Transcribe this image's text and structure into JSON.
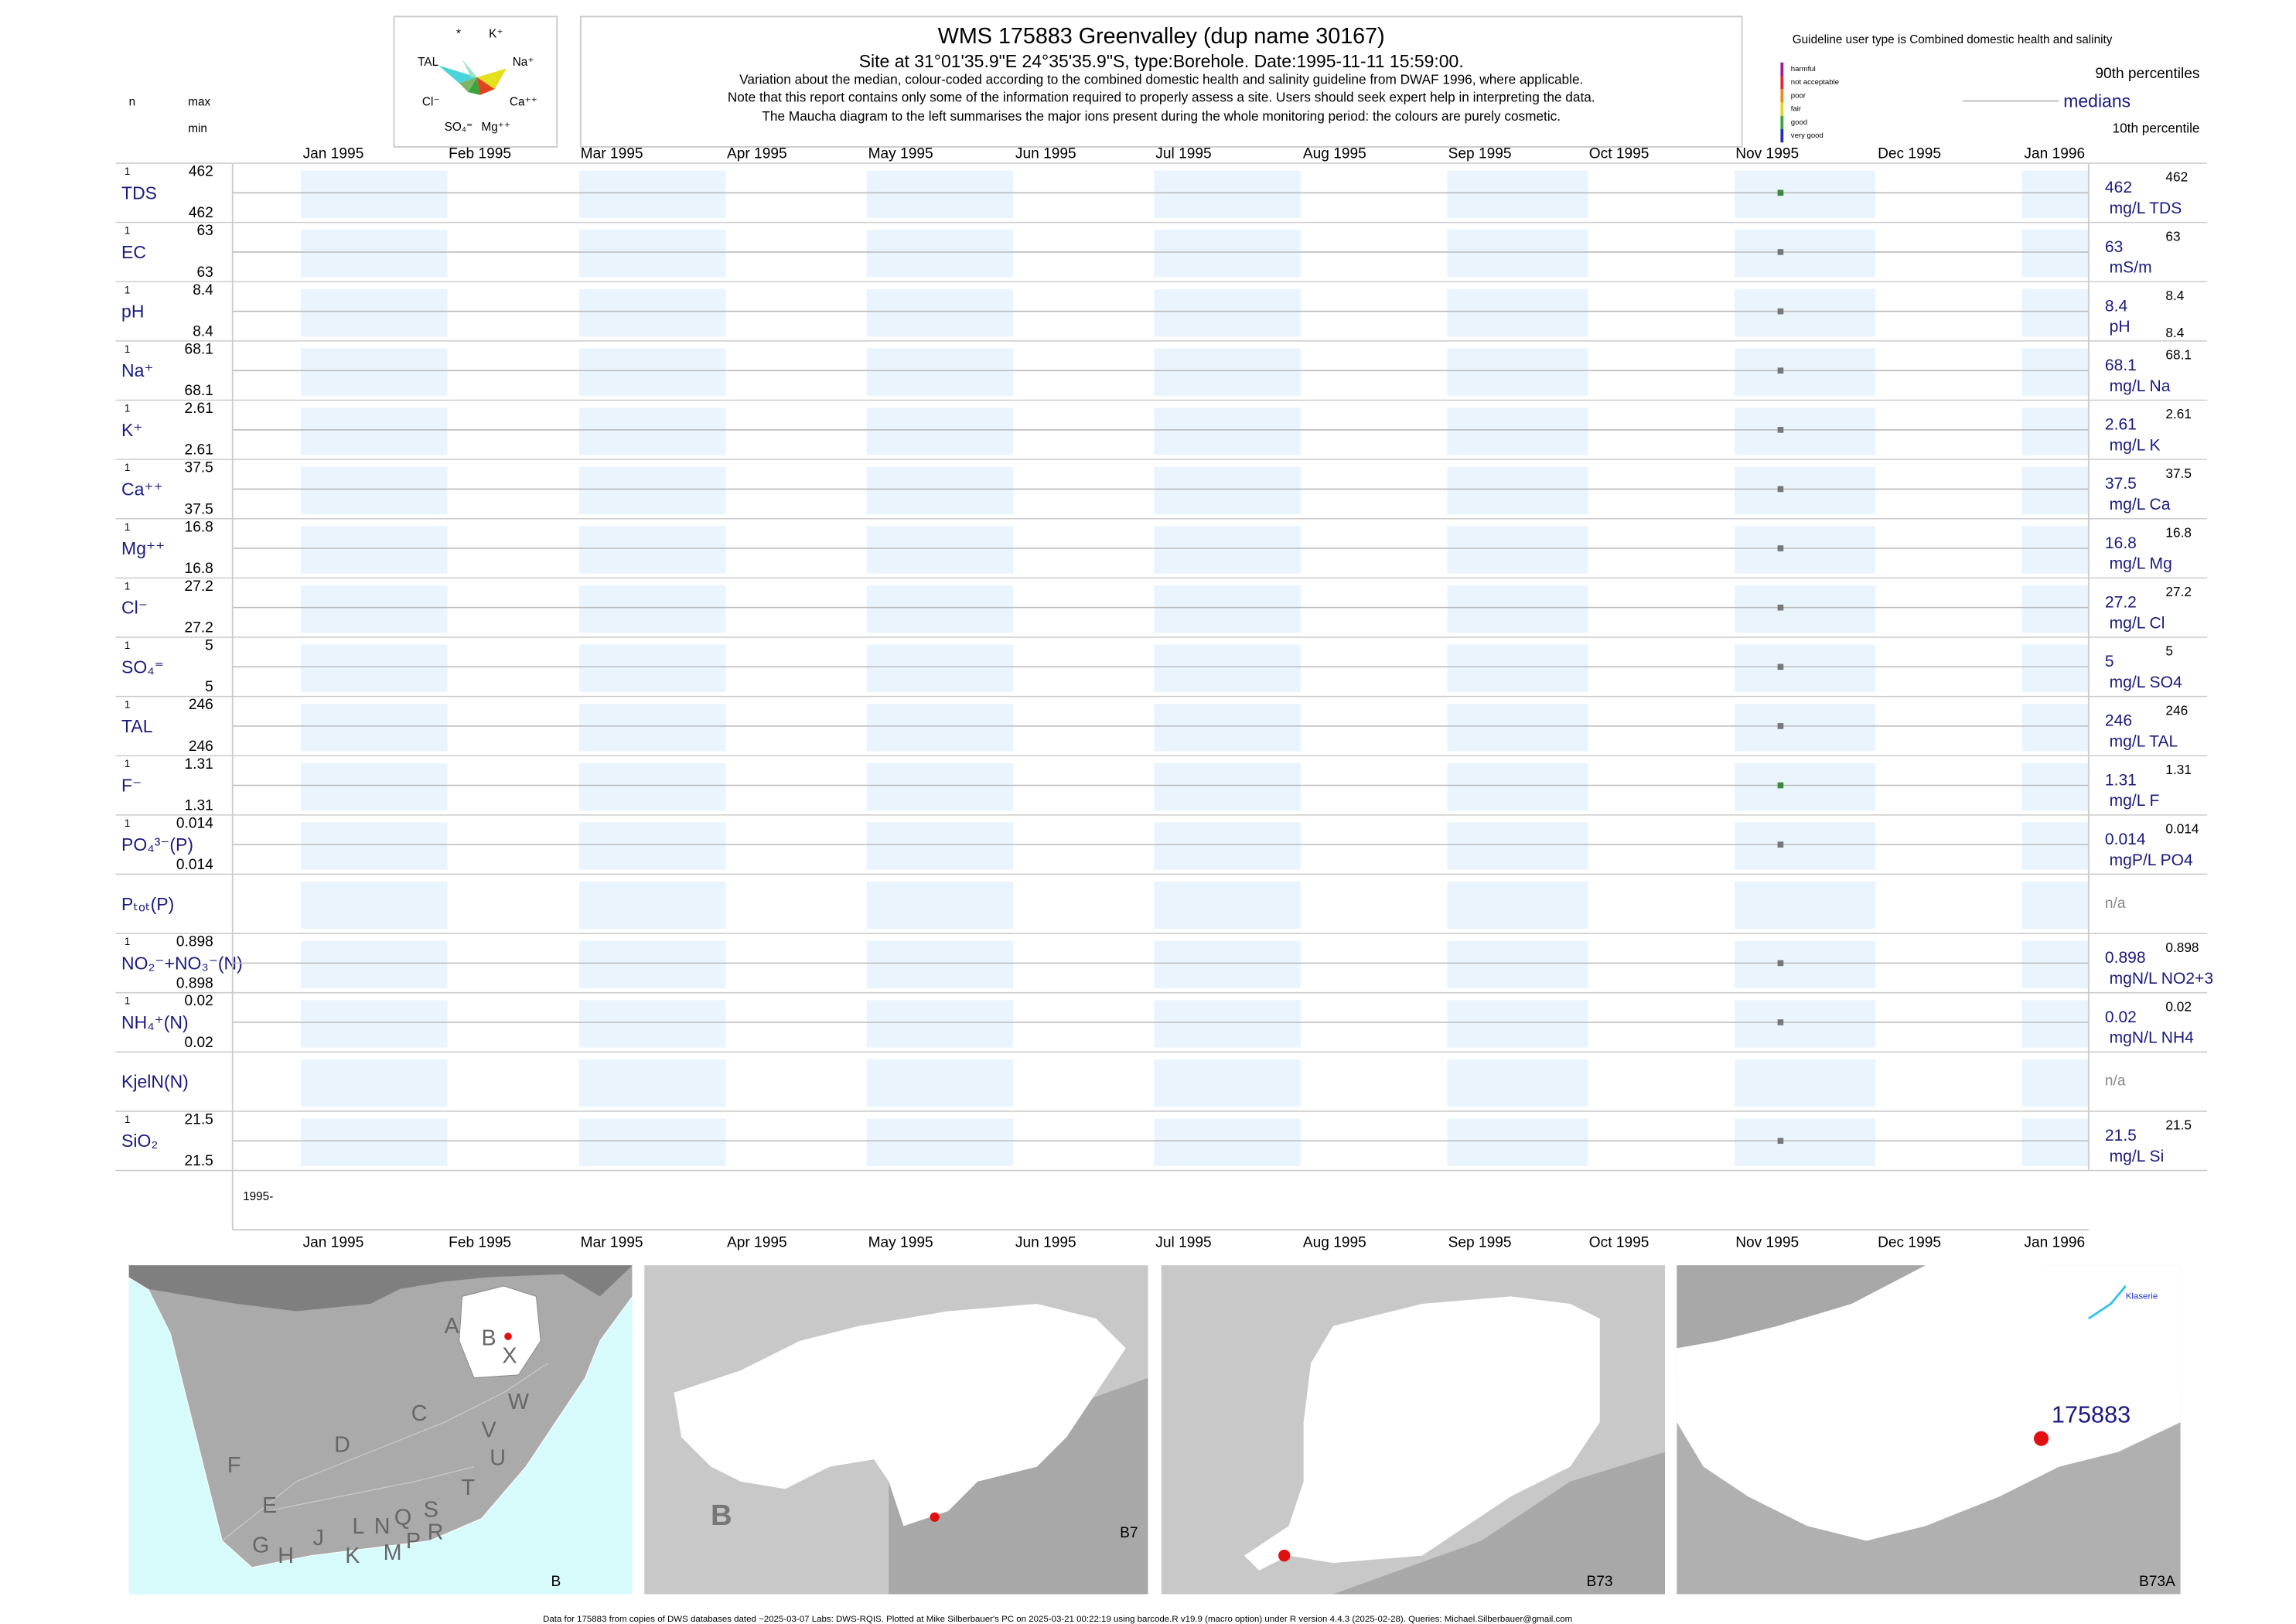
{
  "header": {
    "title": "WMS 175883  Greenvalley (dup name 30167)",
    "site": "Site at 31°01'35.9\"E 24°35'35.9\"S, type:Borehole. Date:1995-11-11 15:59:00.",
    "notes": [
      "Variation about the median,  colour-coded according to the combined domestic health and salinity guideline from DWAF 1996, where applicable.",
      "Note that this report contains only some of the information required to properly assess a site. Users should seek expert help in interpreting the data.",
      "The Maucha diagram to the left summarises the major ions present during the whole monitoring period: the colours are purely cosmetic."
    ]
  },
  "maucha": [
    "*",
    "K⁺",
    "TAL",
    "Na⁺",
    "Cl⁻",
    "Ca⁺⁺",
    "SO₄⁼",
    "Mg⁺⁺"
  ],
  "legend": {
    "guideline": "Guideline user type is Combined domestic health and salinity",
    "classes": [
      {
        "label": "harmful",
        "color": "#a0189b"
      },
      {
        "label": "not acceptable",
        "color": "#e8262b"
      },
      {
        "label": "poor",
        "color": "#f08a24"
      },
      {
        "label": "fair",
        "color": "#e3d62a"
      },
      {
        "label": "good",
        "color": "#3aa53a"
      },
      {
        "label": "very good",
        "color": "#2030b8"
      }
    ],
    "p90": "90th percentiles",
    "medians": "medians",
    "p10": "10th percentile"
  },
  "left_headers": {
    "n": "n",
    "max": "max",
    "min": "min"
  },
  "months": [
    "Jan 1995",
    "Feb 1995",
    "Mar 1995",
    "Apr 1995",
    "May 1995",
    "Jun 1995",
    "Jul 1995",
    "Aug 1995",
    "Sep 1995",
    "Oct 1995",
    "Nov 1995",
    "Dec 1995",
    "Jan 1996"
  ],
  "year_label": "1995-",
  "rows": [
    {
      "label": "TDS",
      "n": 1,
      "max": 462,
      "min": 462,
      "median": 462,
      "unit": "mg/L TDS",
      "p90": 462,
      "dot_color": "#3a8a3a"
    },
    {
      "label": "EC",
      "n": 1,
      "max": 63,
      "min": 63,
      "median": 63,
      "unit": "mS/m",
      "p90": 63,
      "dot_color": "#777777"
    },
    {
      "label": "pH",
      "n": 1,
      "max": 8.4,
      "min": 8.4,
      "median": 8.4,
      "unit": "pH",
      "p90": 8.4,
      "p10": 8.4,
      "dot_color": "#777777"
    },
    {
      "label": "Na⁺",
      "n": 1,
      "max": 68.1,
      "min": 68.1,
      "median": 68.1,
      "unit": "mg/L Na",
      "p90": 68.1,
      "dot_color": "#777777"
    },
    {
      "label": "K⁺",
      "n": 1,
      "max": 2.61,
      "min": 2.61,
      "median": 2.61,
      "unit": "mg/L K",
      "p90": 2.61,
      "dot_color": "#777777"
    },
    {
      "label": "Ca⁺⁺",
      "n": 1,
      "max": 37.5,
      "min": 37.5,
      "median": 37.5,
      "unit": "mg/L Ca",
      "p90": 37.5,
      "dot_color": "#777777"
    },
    {
      "label": "Mg⁺⁺",
      "n": 1,
      "max": 16.8,
      "min": 16.8,
      "median": 16.8,
      "unit": "mg/L Mg",
      "p90": 16.8,
      "dot_color": "#777777"
    },
    {
      "label": "Cl⁻",
      "n": 1,
      "max": 27.2,
      "min": 27.2,
      "median": 27.2,
      "unit": "mg/L Cl",
      "p90": 27.2,
      "dot_color": "#777777"
    },
    {
      "label": "SO₄⁼",
      "n": 1,
      "max": 5,
      "min": 5,
      "median": 5,
      "unit": "mg/L SO4",
      "p90": 5,
      "dot_color": "#777777"
    },
    {
      "label": "TAL",
      "n": 1,
      "max": 246,
      "min": 246,
      "median": 246,
      "unit": "mg/L TAL",
      "p90": 246,
      "dot_color": "#777777"
    },
    {
      "label": "F⁻",
      "n": 1,
      "max": 1.31,
      "min": 1.31,
      "median": 1.31,
      "unit": "mg/L F",
      "p90": 1.31,
      "dot_color": "#3a8a3a"
    },
    {
      "label": "PO₄³⁻(P)",
      "n": 1,
      "max": 0.014,
      "min": 0.014,
      "median": 0.014,
      "unit": "mgP/L PO4",
      "p90": 0.014,
      "dot_color": "#777777"
    },
    {
      "label": "Pₜₒₜ(P)",
      "na": "n/a"
    },
    {
      "label": "NO₂⁻+NO₃⁻(N)",
      "n": 1,
      "max": 0.898,
      "min": 0.898,
      "median": 0.898,
      "unit": "mgN/L NO2+3",
      "p90": 0.898,
      "dot_color": "#777777"
    },
    {
      "label": "NH₄⁺(N)",
      "n": 1,
      "max": 0.02,
      "min": 0.02,
      "median": 0.02,
      "unit": "mgN/L NH4",
      "p90": 0.02,
      "dot_color": "#777777"
    },
    {
      "label": "KjelN(N)",
      "na": "n/a"
    },
    {
      "label": "SiO₂",
      "n": 1,
      "max": 21.5,
      "min": 21.5,
      "median": 21.5,
      "unit": "mg/L Si",
      "p90": 21.5,
      "dot_color": "#777777"
    }
  ],
  "maps": {
    "m1": {
      "letters": [
        "A",
        "B",
        "X",
        "C",
        "W",
        "D",
        "V",
        "U",
        "F",
        "T",
        "E",
        "L",
        "N",
        "Q",
        "S",
        "G",
        "H",
        "J",
        "K",
        "M",
        "P",
        "R"
      ],
      "corner": "B"
    },
    "m2": {
      "letter": "B",
      "corner": "B7"
    },
    "m3": {
      "corner": "B73"
    },
    "m4": {
      "river": "Klaserie",
      "site": "175883",
      "corner": "B73A"
    }
  },
  "footer": "Data for 175883 from copies of DWS databases dated ~2025-03-07 Labs: DWS-RQIS. Plotted at Mike Silberbauer's PC on 2025-03-21 00:22:19 using barcode.R v19.9 (macro option) under R version 4.4.3 (2025-02-28). Queries: Michael.Silberbauer@gmail.com"
}
